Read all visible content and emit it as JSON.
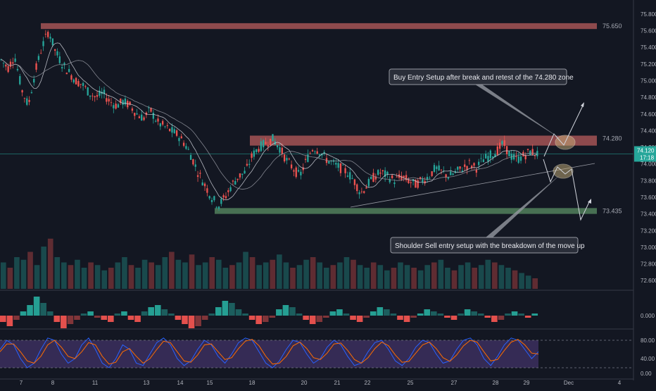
{
  "chart_data": {
    "type": "candlestick",
    "title": "",
    "price_axis": {
      "ticks": [
        "75.800",
        "75.600",
        "75.400",
        "75.200",
        "75.000",
        "74.800",
        "74.600",
        "74.400",
        "74.200",
        "74.000",
        "73.800",
        "73.600",
        "73.400",
        "73.200",
        "73.000",
        "72.800",
        "72.600"
      ],
      "ylim": [
        72.5,
        75.85
      ]
    },
    "last_price": {
      "value": "74.120",
      "countdown": "17:18",
      "color": "#26a69a"
    },
    "time_axis": {
      "labels": [
        "7",
        "8",
        "11",
        "13",
        "14",
        "15",
        "18",
        "20",
        "21",
        "22",
        "25",
        "27",
        "28",
        "29",
        "Dec",
        "4"
      ]
    },
    "zones": [
      {
        "label": "75.650",
        "low": 75.62,
        "high": 75.69,
        "color": "#b85c5c"
      },
      {
        "label": "74.280",
        "low": 74.22,
        "high": 74.34,
        "color": "#b85c5c"
      },
      {
        "label": "73.435",
        "low": 73.4,
        "high": 73.47,
        "color": "#5b8f64"
      }
    ],
    "price_path": [
      [
        0,
        75.25
      ],
      [
        1,
        75.15
      ],
      [
        2,
        75.3
      ],
      [
        3,
        74.9
      ],
      [
        4,
        74.7
      ],
      [
        5,
        75.1
      ],
      [
        6,
        75.4
      ],
      [
        7,
        75.6
      ],
      [
        8,
        75.35
      ],
      [
        9,
        75.2
      ],
      [
        10,
        75.1
      ],
      [
        11,
        75.0
      ],
      [
        12,
        74.95
      ],
      [
        13,
        74.85
      ],
      [
        14,
        74.8
      ],
      [
        15,
        74.85
      ],
      [
        16,
        74.75
      ],
      [
        17,
        74.7
      ],
      [
        18,
        74.75
      ],
      [
        19,
        74.7
      ],
      [
        20,
        74.6
      ],
      [
        21,
        74.55
      ],
      [
        22,
        74.65
      ],
      [
        23,
        74.5
      ],
      [
        24,
        74.45
      ],
      [
        25,
        74.4
      ],
      [
        26,
        74.35
      ],
      [
        27,
        74.25
      ],
      [
        28,
        74.1
      ],
      [
        29,
        73.9
      ],
      [
        30,
        73.75
      ],
      [
        31,
        73.6
      ],
      [
        32,
        73.5
      ],
      [
        33,
        73.6
      ],
      [
        34,
        73.75
      ],
      [
        35,
        73.85
      ],
      [
        36,
        73.9
      ],
      [
        37,
        74.1
      ],
      [
        38,
        74.2
      ],
      [
        39,
        74.25
      ],
      [
        40,
        74.3
      ],
      [
        41,
        74.2
      ],
      [
        42,
        74.05
      ],
      [
        43,
        73.95
      ],
      [
        44,
        73.85
      ],
      [
        45,
        74.05
      ],
      [
        46,
        74.2
      ],
      [
        47,
        74.15
      ],
      [
        48,
        74.05
      ],
      [
        49,
        74.0
      ],
      [
        50,
        73.95
      ],
      [
        51,
        73.9
      ],
      [
        52,
        73.8
      ],
      [
        53,
        73.65
      ],
      [
        54,
        73.75
      ],
      [
        55,
        73.85
      ],
      [
        56,
        73.9
      ],
      [
        57,
        73.85
      ],
      [
        58,
        73.8
      ],
      [
        59,
        73.85
      ],
      [
        60,
        73.8
      ],
      [
        61,
        73.75
      ],
      [
        62,
        73.8
      ],
      [
        63,
        73.85
      ],
      [
        64,
        73.95
      ],
      [
        65,
        73.9
      ],
      [
        66,
        73.85
      ],
      [
        67,
        73.9
      ],
      [
        68,
        73.95
      ],
      [
        69,
        74.0
      ],
      [
        70,
        73.95
      ],
      [
        71,
        74.05
      ],
      [
        72,
        74.1
      ],
      [
        73,
        74.15
      ],
      [
        74,
        74.25
      ],
      [
        75,
        74.1
      ],
      [
        76,
        74.05
      ],
      [
        77,
        74.1
      ],
      [
        78,
        74.15
      ],
      [
        79,
        74.12
      ]
    ],
    "volume": {
      "values": [
        0.5,
        0.4,
        0.6,
        0.55,
        0.7,
        0.45,
        0.8,
        0.95,
        0.6,
        0.5,
        0.45,
        0.55,
        0.4,
        0.5,
        0.45,
        0.35,
        0.4,
        0.5,
        0.6,
        0.45,
        0.4,
        0.55,
        0.5,
        0.45,
        0.6,
        0.7,
        0.55,
        0.5,
        0.65,
        0.45,
        0.5,
        0.6,
        0.55,
        0.4,
        0.45,
        0.5,
        0.7,
        0.6,
        0.45,
        0.5,
        0.55,
        0.65,
        0.5,
        0.4,
        0.45,
        0.55,
        0.6,
        0.5,
        0.4,
        0.45,
        0.5,
        0.6,
        0.55,
        0.45,
        0.4,
        0.5,
        0.45,
        0.35,
        0.4,
        0.5,
        0.45,
        0.4,
        0.35,
        0.45,
        0.5,
        0.55,
        0.4,
        0.35,
        0.45,
        0.5,
        0.4,
        0.45,
        0.55,
        0.5,
        0.45,
        0.4,
        0.35,
        0.3,
        0.25,
        0.2
      ]
    },
    "oscillator": {
      "ticks": [
        "0.000"
      ],
      "values": [
        -0.3,
        -0.5,
        -0.2,
        0.2,
        0.5,
        0.9,
        0.6,
        0.2,
        -0.3,
        -0.6,
        -0.4,
        -0.2,
        0.1,
        0.2,
        -0.1,
        -0.2,
        -0.3,
        0.1,
        0.2,
        -0.2,
        -0.3,
        0.2,
        0.4,
        0.5,
        0.3,
        0.1,
        -0.2,
        -0.4,
        -0.6,
        -0.5,
        -0.2,
        0.1,
        0.4,
        0.7,
        0.6,
        0.3,
        0.1,
        -0.2,
        -0.4,
        -0.3,
        -0.1,
        0.3,
        0.5,
        0.4,
        0.1,
        -0.2,
        -0.4,
        -0.3,
        -0.1,
        0.2,
        0.3,
        0.1,
        -0.2,
        -0.3,
        -0.1,
        0.2,
        0.4,
        0.3,
        0.1,
        -0.2,
        -0.3,
        -0.1,
        0.1,
        0.3,
        0.2,
        0.1,
        -0.1,
        -0.2,
        0.1,
        0.3,
        0.2,
        0.1,
        -0.1,
        -0.3,
        -0.2,
        0.1,
        0.2,
        0.1,
        -0.1,
        0.1
      ]
    },
    "stochastic": {
      "ticks": [
        "80.00",
        "40.00",
        "0.00"
      ],
      "k": [
        60,
        80,
        70,
        40,
        20,
        30,
        60,
        85,
        80,
        50,
        30,
        40,
        70,
        85,
        60,
        30,
        20,
        40,
        70,
        60,
        30,
        25,
        50,
        75,
        85,
        70,
        40,
        25,
        35,
        60,
        80,
        70,
        45,
        30,
        50,
        75,
        85,
        80,
        55,
        30,
        20,
        35,
        60,
        80,
        75,
        50,
        30,
        40,
        65,
        80,
        70,
        45,
        25,
        30,
        55,
        75,
        80,
        60,
        35,
        25,
        40,
        65,
        80,
        75,
        50,
        30,
        35,
        60,
        80,
        85,
        70,
        40,
        25,
        45,
        70,
        85,
        80,
        60,
        40,
        55
      ],
      "d": [
        55,
        72,
        72,
        55,
        35,
        30,
        45,
        70,
        80,
        65,
        45,
        40,
        55,
        75,
        70,
        45,
        28,
        32,
        55,
        62,
        45,
        30,
        40,
        60,
        78,
        75,
        55,
        35,
        32,
        48,
        70,
        72,
        55,
        38,
        42,
        62,
        78,
        82,
        68,
        45,
        28,
        30,
        45,
        68,
        76,
        62,
        42,
        38,
        52,
        72,
        74,
        58,
        38,
        30,
        42,
        62,
        76,
        68,
        48,
        32,
        34,
        52,
        70,
        76,
        62,
        42,
        34,
        48,
        68,
        80,
        76,
        55,
        35,
        38,
        58,
        76,
        82,
        70,
        52,
        50
      ],
      "overbought": 80,
      "oversold": 20,
      "band_color": "#7e57c2"
    },
    "annotations": [
      {
        "text": "Buy Entry Setup after break and retest of the 74.280 zone"
      },
      {
        "text": "Shoulder Sell entry setup with the breakdown of the move up"
      }
    ]
  }
}
